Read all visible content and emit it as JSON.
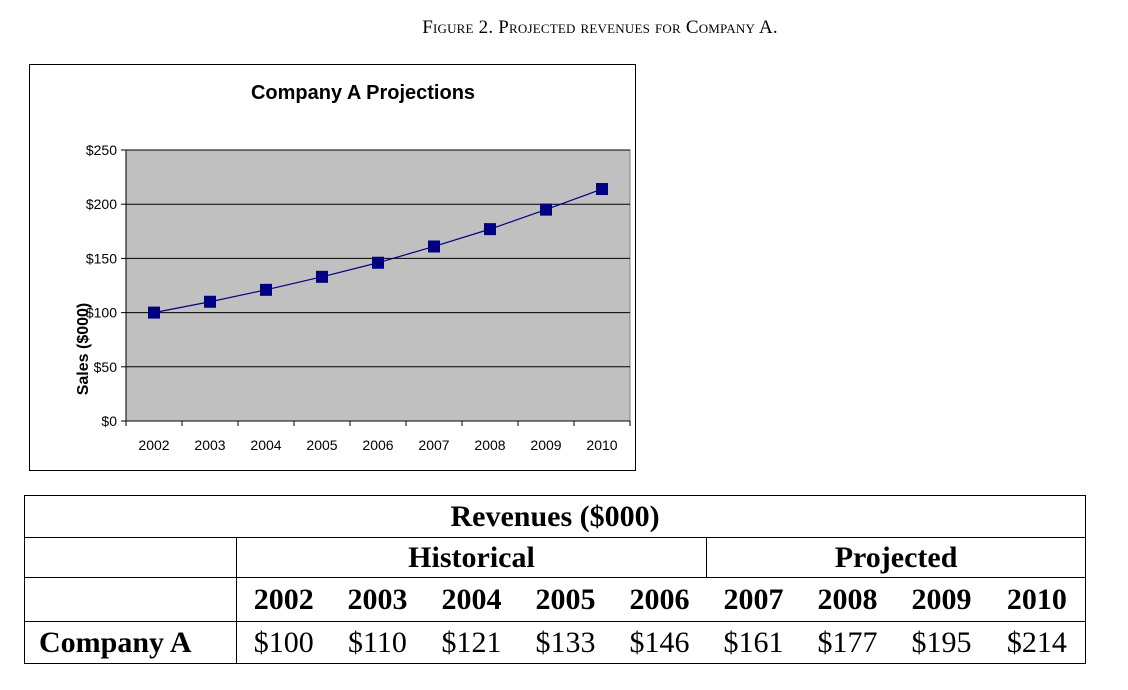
{
  "figure_caption": "Figure 2. Projected revenues for Company A.",
  "chart_data": {
    "type": "line",
    "title": "Company A Projections",
    "ylabel": "Sales ($000)",
    "xlabel": "",
    "categories": [
      "2002",
      "2003",
      "2004",
      "2005",
      "2006",
      "2007",
      "2008",
      "2009",
      "2010"
    ],
    "series": [
      {
        "name": "",
        "values": [
          100,
          110,
          121,
          133,
          146,
          161,
          177,
          195,
          214
        ]
      }
    ],
    "ylim": [
      0,
      250
    ],
    "yticks": [
      0,
      50,
      100,
      150,
      200,
      250
    ],
    "ytick_labels": [
      "$0",
      "$50",
      "$100",
      "$150",
      "$200",
      "$250"
    ],
    "grid": true,
    "legend": "none",
    "colors": {
      "plot_bg": "#c0c0c0",
      "series": "#000080",
      "grid": "#000000"
    }
  },
  "table": {
    "title": "Revenues ($000)",
    "group_historical": "Historical",
    "group_projected": "Projected",
    "years": [
      "2002",
      "2003",
      "2004",
      "2005",
      "2006",
      "2007",
      "2008",
      "2009",
      "2010"
    ],
    "row_label": "Company A",
    "values": [
      "$100",
      "$110",
      "$121",
      "$133",
      "$146",
      "$161",
      "$177",
      "$195",
      "$214"
    ]
  }
}
